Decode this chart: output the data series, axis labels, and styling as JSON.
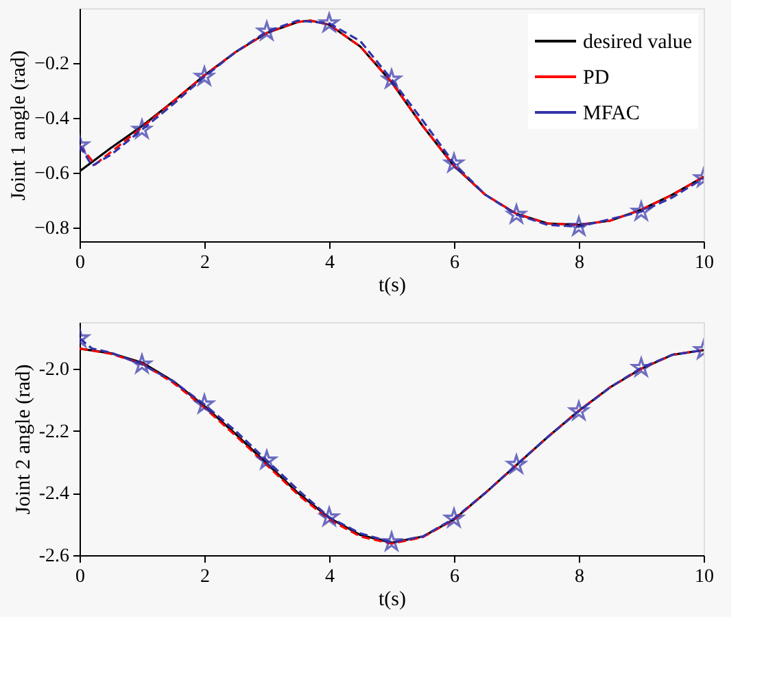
{
  "chart_data": [
    {
      "type": "line",
      "xlabel": "t(s)",
      "ylabel": "Joint 1 angle (rad)",
      "xlim": [
        0,
        10
      ],
      "xticks": [
        0,
        2,
        4,
        6,
        8,
        10
      ],
      "ylim": [
        -0.85,
        0
      ],
      "yticks": [
        -0.8,
        -0.6,
        -0.4,
        -0.2
      ],
      "grid": false,
      "legend": "top right",
      "series": [
        {
          "name": "desired value",
          "color": "#000000",
          "line_style": "solid",
          "marker": "none",
          "x": [
            0,
            0.5,
            1,
            1.5,
            2,
            2.5,
            3,
            3.5,
            3.7,
            4,
            4.5,
            5,
            5.5,
            6,
            6.5,
            7,
            7.5,
            8,
            8.5,
            9,
            9.5,
            10
          ],
          "values": [
            -0.595,
            -0.51,
            -0.43,
            -0.34,
            -0.245,
            -0.16,
            -0.09,
            -0.05,
            -0.045,
            -0.06,
            -0.14,
            -0.27,
            -0.43,
            -0.575,
            -0.68,
            -0.75,
            -0.785,
            -0.79,
            -0.775,
            -0.735,
            -0.68,
            -0.615
          ]
        },
        {
          "name": "PD",
          "color": "#ff0000",
          "line_style": "dashed",
          "marker": "none",
          "x": [
            0,
            0.25,
            0.5,
            1,
            1.5,
            2,
            2.5,
            3,
            3.5,
            3.7,
            4,
            4.5,
            5,
            5.5,
            6,
            6.5,
            7,
            7.5,
            8,
            8.5,
            9,
            9.5,
            10
          ],
          "values": [
            -0.5,
            -0.57,
            -0.525,
            -0.435,
            -0.34,
            -0.245,
            -0.16,
            -0.09,
            -0.05,
            -0.045,
            -0.06,
            -0.14,
            -0.27,
            -0.43,
            -0.575,
            -0.68,
            -0.75,
            -0.785,
            -0.79,
            -0.775,
            -0.735,
            -0.68,
            -0.615
          ]
        },
        {
          "name": "MFAC",
          "color": "#3333aa",
          "line_style": "dashed",
          "marker": "star",
          "x": [
            0,
            0.2,
            0.5,
            1,
            1.5,
            2,
            2.5,
            3,
            3.5,
            4,
            4.5,
            5,
            5.5,
            6,
            6.5,
            7,
            7.5,
            8,
            9,
            9.5,
            10
          ],
          "values": [
            -0.5,
            -0.575,
            -0.535,
            -0.443,
            -0.35,
            -0.25,
            -0.16,
            -0.085,
            -0.045,
            -0.055,
            -0.12,
            -0.26,
            -0.41,
            -0.566,
            -0.68,
            -0.753,
            -0.79,
            -0.797,
            -0.742,
            -0.69,
            -0.62
          ]
        }
      ]
    },
    {
      "type": "line",
      "xlabel": "t(s)",
      "ylabel": "Joint 2 angle (rad)",
      "xlim": [
        0,
        10
      ],
      "xticks": [
        0,
        2,
        4,
        6,
        8,
        10
      ],
      "ylim": [
        -2.6,
        -1.85
      ],
      "yticks": [
        {
          "value": -2.6,
          "label": "-2.6"
        },
        {
          "value": -2.4,
          "label": "-2.4"
        },
        {
          "value": -2.2,
          "label": "-2.2"
        },
        {
          "value": -2.0,
          "label": "-2.0"
        }
      ],
      "grid": false,
      "legend": "top right",
      "series": [
        {
          "name": "desired value",
          "color": "#000000",
          "line_style": "solid",
          "marker": "none",
          "x": [
            0,
            0.5,
            1,
            1.5,
            2,
            2.5,
            3,
            3.5,
            4,
            4.5,
            5,
            5.5,
            6,
            6.5,
            7,
            7.5,
            8,
            8.5,
            9,
            9.5,
            10
          ],
          "values": [
            -1.935,
            -1.95,
            -1.98,
            -2.04,
            -2.12,
            -2.21,
            -2.305,
            -2.4,
            -2.48,
            -2.535,
            -2.56,
            -2.54,
            -2.485,
            -2.4,
            -2.31,
            -2.22,
            -2.135,
            -2.06,
            -2.0,
            -1.955,
            -1.94
          ]
        },
        {
          "name": "PD",
          "color": "#ff0000",
          "line_style": "dashed",
          "marker": "none",
          "x": [
            0,
            0.5,
            1,
            1.5,
            2,
            2.5,
            3,
            3.5,
            4,
            4.5,
            5,
            5.5,
            6,
            6.5,
            7,
            7.5,
            8,
            8.5,
            9,
            9.5,
            10
          ],
          "values": [
            -1.935,
            -1.952,
            -1.983,
            -2.045,
            -2.125,
            -2.215,
            -2.31,
            -2.405,
            -2.485,
            -2.54,
            -2.563,
            -2.542,
            -2.486,
            -2.4,
            -2.31,
            -2.22,
            -2.135,
            -2.06,
            -2.0,
            -1.955,
            -1.94
          ]
        },
        {
          "name": "MFAC",
          "color": "#3333aa",
          "line_style": "dashed",
          "marker": "star",
          "x": [
            0,
            0.2,
            0.5,
            1,
            1.5,
            2,
            2.5,
            3,
            3.5,
            4,
            4.5,
            5,
            5.5,
            6,
            6.5,
            7,
            7.5,
            8,
            8.5,
            9,
            9.5,
            10
          ],
          "values": [
            -1.902,
            -1.935,
            -1.948,
            -1.986,
            -2.04,
            -2.115,
            -2.2,
            -2.295,
            -2.39,
            -2.478,
            -2.53,
            -2.558,
            -2.54,
            -2.482,
            -2.4,
            -2.309,
            -2.22,
            -2.137,
            -2.06,
            -1.997,
            -1.955,
            -1.94
          ]
        }
      ]
    }
  ]
}
